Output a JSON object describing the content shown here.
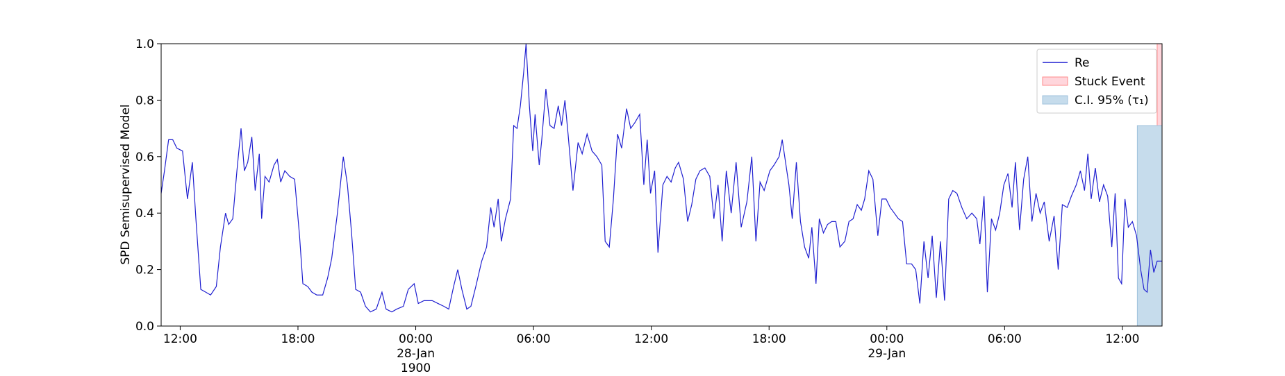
{
  "chart_data": {
    "type": "line",
    "y_label": "SPD Semisupervised Model",
    "xlim": [
      -12.97,
      38.02
    ],
    "ylim": [
      0,
      1
    ],
    "xticks": [
      {
        "value": -12,
        "label": "12:00"
      },
      {
        "value": -6,
        "label": "18:00"
      },
      {
        "value": 0,
        "label": "00:00\n28-Jan\n1900"
      },
      {
        "value": 6,
        "label": "06:00"
      },
      {
        "value": 12,
        "label": "12:00"
      },
      {
        "value": 18,
        "label": "18:00"
      },
      {
        "value": 24,
        "label": "00:00\n29-Jan"
      },
      {
        "value": 30,
        "label": "06:00"
      },
      {
        "value": 36,
        "label": "12:00"
      }
    ],
    "yticks": [
      {
        "value": 0,
        "label": "0.0"
      },
      0.2,
      0.4,
      0.6,
      0.8,
      {
        "value": 1,
        "label": "1.0"
      }
    ],
    "legend": "upper right",
    "series": [
      {
        "name": "Re",
        "color": "#1f1fd0",
        "x": [
          -12.97,
          -12.8,
          -12.59,
          -12.38,
          -12.17,
          -11.88,
          -11.63,
          -11.38,
          -11.2,
          -10.95,
          -10.7,
          -10.45,
          -10.16,
          -9.95,
          -9.69,
          -9.53,
          -9.32,
          -9.11,
          -8.9,
          -8.73,
          -8.56,
          -8.35,
          -8.18,
          -7.97,
          -7.85,
          -7.68,
          -7.47,
          -7.22,
          -7.05,
          -6.88,
          -6.67,
          -6.42,
          -6.17,
          -5.92,
          -5.75,
          -5.5,
          -5.29,
          -5.04,
          -4.74,
          -4.49,
          -4.28,
          -3.99,
          -3.69,
          -3.48,
          -3.27,
          -3.06,
          -2.81,
          -2.56,
          -2.31,
          -2.01,
          -1.72,
          -1.51,
          -1.22,
          -0.97,
          -0.63,
          -0.38,
          -0.08,
          0.13,
          0.42,
          0.84,
          1.13,
          1.43,
          1.68,
          1.93,
          2.14,
          2.35,
          2.6,
          2.81,
          3.06,
          3.36,
          3.61,
          3.82,
          3.99,
          4.2,
          4.36,
          4.57,
          4.83,
          4.99,
          5.16,
          5.33,
          5.5,
          5.62,
          5.79,
          5.96,
          6.08,
          6.29,
          6.42,
          6.63,
          6.84,
          7.05,
          7.26,
          7.43,
          7.6,
          7.76,
          8.01,
          8.27,
          8.48,
          8.73,
          8.98,
          9.23,
          9.48,
          9.65,
          9.86,
          10.07,
          10.28,
          10.49,
          10.74,
          10.95,
          11.16,
          11.41,
          11.62,
          11.79,
          11.96,
          12.17,
          12.34,
          12.59,
          12.8,
          13.01,
          13.22,
          13.39,
          13.64,
          13.85,
          14.06,
          14.27,
          14.48,
          14.73,
          14.98,
          15.19,
          15.4,
          15.61,
          15.82,
          16.07,
          16.32,
          16.58,
          16.87,
          17.12,
          17.33,
          17.54,
          17.75,
          18.04,
          18.25,
          18.51,
          18.67,
          18.84,
          19.01,
          19.18,
          19.39,
          19.6,
          19.81,
          20.02,
          20.18,
          20.39,
          20.56,
          20.77,
          20.98,
          21.19,
          21.4,
          21.61,
          21.86,
          22.07,
          22.28,
          22.49,
          22.7,
          22.87,
          23.08,
          23.29,
          23.54,
          23.75,
          23.96,
          24.17,
          24.38,
          24.59,
          24.8,
          25.01,
          25.26,
          25.47,
          25.68,
          25.89,
          26.1,
          26.31,
          26.52,
          26.73,
          26.94,
          27.15,
          27.36,
          27.57,
          27.82,
          28.07,
          28.33,
          28.58,
          28.74,
          28.95,
          29.12,
          29.33,
          29.54,
          29.75,
          29.96,
          30.17,
          30.38,
          30.55,
          30.76,
          30.97,
          31.18,
          31.39,
          31.6,
          31.81,
          32.02,
          32.27,
          32.52,
          32.73,
          32.94,
          33.19,
          33.4,
          33.65,
          33.86,
          34.07,
          34.24,
          34.41,
          34.62,
          34.83,
          35.04,
          35.25,
          35.46,
          35.63,
          35.8,
          35.96,
          36.13,
          36.3,
          36.51,
          36.72,
          36.93,
          37.1,
          37.26,
          37.43,
          37.6,
          37.77,
          38.02
        ],
        "values": [
          0.47,
          0.55,
          0.66,
          0.66,
          0.63,
          0.62,
          0.45,
          0.58,
          0.38,
          0.13,
          0.12,
          0.11,
          0.14,
          0.28,
          0.4,
          0.36,
          0.38,
          0.55,
          0.7,
          0.55,
          0.58,
          0.67,
          0.48,
          0.61,
          0.38,
          0.53,
          0.51,
          0.57,
          0.59,
          0.51,
          0.55,
          0.53,
          0.52,
          0.32,
          0.15,
          0.14,
          0.12,
          0.11,
          0.11,
          0.17,
          0.24,
          0.4,
          0.6,
          0.5,
          0.33,
          0.13,
          0.12,
          0.07,
          0.05,
          0.06,
          0.12,
          0.06,
          0.05,
          0.06,
          0.07,
          0.13,
          0.15,
          0.08,
          0.09,
          0.09,
          0.08,
          0.07,
          0.06,
          0.14,
          0.2,
          0.13,
          0.06,
          0.07,
          0.14,
          0.23,
          0.28,
          0.42,
          0.35,
          0.45,
          0.3,
          0.38,
          0.45,
          0.71,
          0.7,
          0.78,
          0.9,
          1.0,
          0.78,
          0.62,
          0.75,
          0.57,
          0.66,
          0.84,
          0.71,
          0.7,
          0.78,
          0.71,
          0.8,
          0.68,
          0.48,
          0.65,
          0.61,
          0.68,
          0.62,
          0.6,
          0.57,
          0.3,
          0.28,
          0.45,
          0.68,
          0.63,
          0.77,
          0.7,
          0.72,
          0.75,
          0.5,
          0.66,
          0.47,
          0.55,
          0.26,
          0.5,
          0.53,
          0.51,
          0.56,
          0.58,
          0.52,
          0.37,
          0.43,
          0.52,
          0.55,
          0.56,
          0.53,
          0.38,
          0.5,
          0.3,
          0.55,
          0.4,
          0.58,
          0.35,
          0.44,
          0.6,
          0.3,
          0.51,
          0.48,
          0.55,
          0.57,
          0.6,
          0.66,
          0.58,
          0.5,
          0.38,
          0.58,
          0.37,
          0.28,
          0.24,
          0.35,
          0.15,
          0.38,
          0.33,
          0.36,
          0.37,
          0.37,
          0.28,
          0.3,
          0.37,
          0.38,
          0.43,
          0.41,
          0.45,
          0.55,
          0.52,
          0.32,
          0.45,
          0.45,
          0.42,
          0.4,
          0.38,
          0.37,
          0.22,
          0.22,
          0.2,
          0.08,
          0.3,
          0.17,
          0.32,
          0.1,
          0.3,
          0.09,
          0.45,
          0.48,
          0.47,
          0.42,
          0.38,
          0.4,
          0.38,
          0.29,
          0.46,
          0.12,
          0.38,
          0.34,
          0.4,
          0.5,
          0.54,
          0.42,
          0.58,
          0.34,
          0.52,
          0.6,
          0.37,
          0.47,
          0.4,
          0.44,
          0.3,
          0.39,
          0.2,
          0.43,
          0.42,
          0.46,
          0.5,
          0.55,
          0.48,
          0.61,
          0.45,
          0.56,
          0.44,
          0.5,
          0.46,
          0.28,
          0.47,
          0.17,
          0.15,
          0.45,
          0.35,
          0.37,
          0.32,
          0.2,
          0.13,
          0.12,
          0.27,
          0.19,
          0.23,
          0.23
        ]
      }
    ],
    "regions": [
      {
        "name": "Stuck Event",
        "color": "#ffd6dc",
        "edge": "#ff8a8a",
        "x": [
          37.77,
          38.02
        ],
        "y": [
          0,
          1
        ]
      },
      {
        "name": "C.I. 95% (τ₁)",
        "color": "#c6dcec",
        "edge": "#9fc2dc",
        "x": [
          36.76,
          38.02
        ],
        "y": [
          0,
          0.71
        ]
      }
    ]
  }
}
